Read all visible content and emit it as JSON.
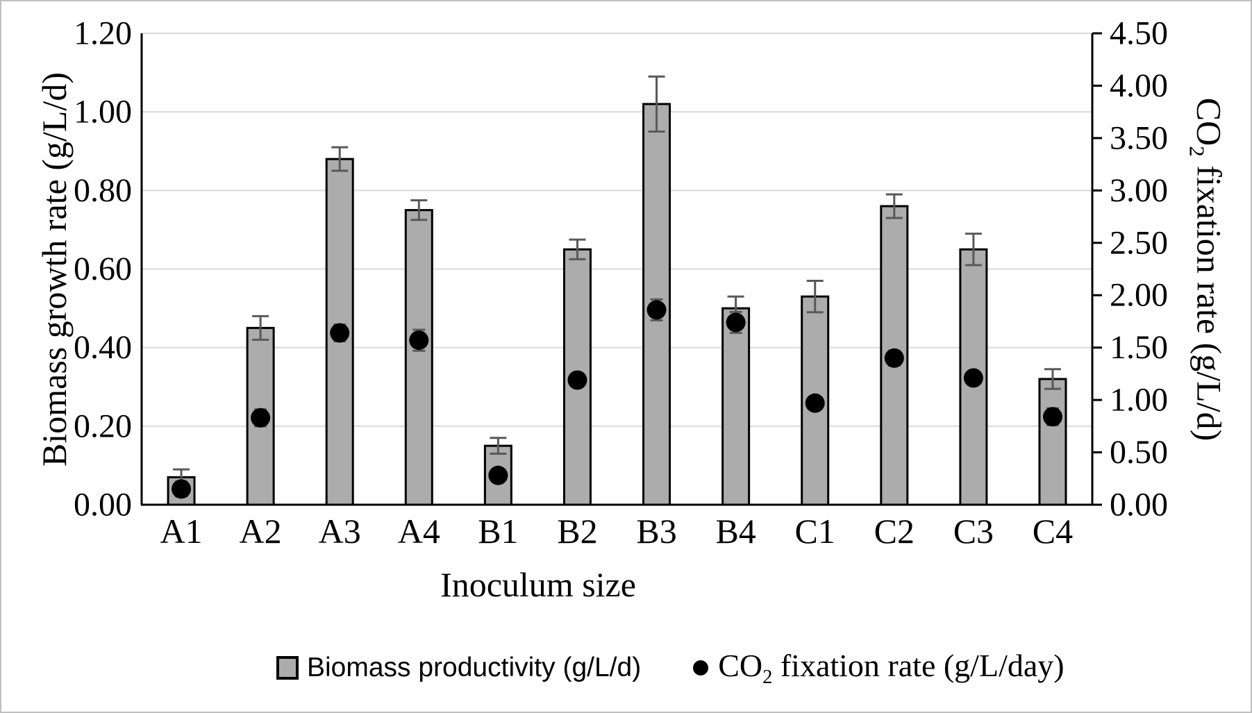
{
  "chart_data": {
    "type": "bar",
    "subtype": "combo bar + scatter, dual y-axis, vertical error bars",
    "categories": [
      "A1",
      "A2",
      "A3",
      "A4",
      "B1",
      "B2",
      "B3",
      "B4",
      "C1",
      "C2",
      "C3",
      "C4"
    ],
    "series": [
      {
        "name": "Biomass productivity (g/L/d)",
        "type": "bar",
        "axis": "left",
        "values": [
          0.07,
          0.45,
          0.88,
          0.75,
          0.15,
          0.65,
          1.02,
          0.5,
          0.53,
          0.76,
          0.65,
          0.32
        ],
        "error_bars": [
          0.02,
          0.03,
          0.03,
          0.025,
          0.02,
          0.025,
          0.07,
          0.03,
          0.04,
          0.03,
          0.04,
          0.025
        ]
      },
      {
        "name_pre": "CO",
        "name_sub": "2",
        "name_post": " fixation rate (g/L/day)",
        "type": "scatter",
        "axis": "right",
        "values": [
          0.15,
          0.83,
          1.64,
          1.57,
          0.28,
          1.19,
          1.86,
          1.74,
          0.97,
          1.4,
          1.21,
          0.84
        ],
        "error_bars": [
          0.07,
          0.08,
          0.08,
          0.1,
          0.06,
          0.06,
          0.1,
          0.1,
          0.05,
          0.07,
          0.06,
          0.08
        ]
      }
    ],
    "x_axis": {
      "title": "Inoculum size"
    },
    "left_axis": {
      "title": "Biomass growth rate (g/L/d)",
      "min": 0,
      "max": 1.2,
      "step": 0.2,
      "tick_labels": [
        "0.00",
        "0.20",
        "0.40",
        "0.60",
        "0.80",
        "1.00",
        "1.20"
      ]
    },
    "right_axis": {
      "title_pre": "CO",
      "title_sub": "2",
      "title_post": " fixation rate (g/L/d)",
      "min": 0,
      "max": 4.5,
      "step": 0.5,
      "tick_labels": [
        "0.00",
        "0.50",
        "1.00",
        "1.50",
        "2.00",
        "2.50",
        "3.00",
        "3.50",
        "4.00",
        "4.50"
      ]
    },
    "grid": true,
    "legend_position": "bottom"
  },
  "colors": {
    "bar_fill": "#acacac",
    "bar_border": "#000000",
    "error_bar": "#595959",
    "dot": "#000000",
    "gridline": "#d9d9d9",
    "axis": "#000000",
    "frame_border": "#bfbfbf",
    "background": "#ffffff"
  }
}
